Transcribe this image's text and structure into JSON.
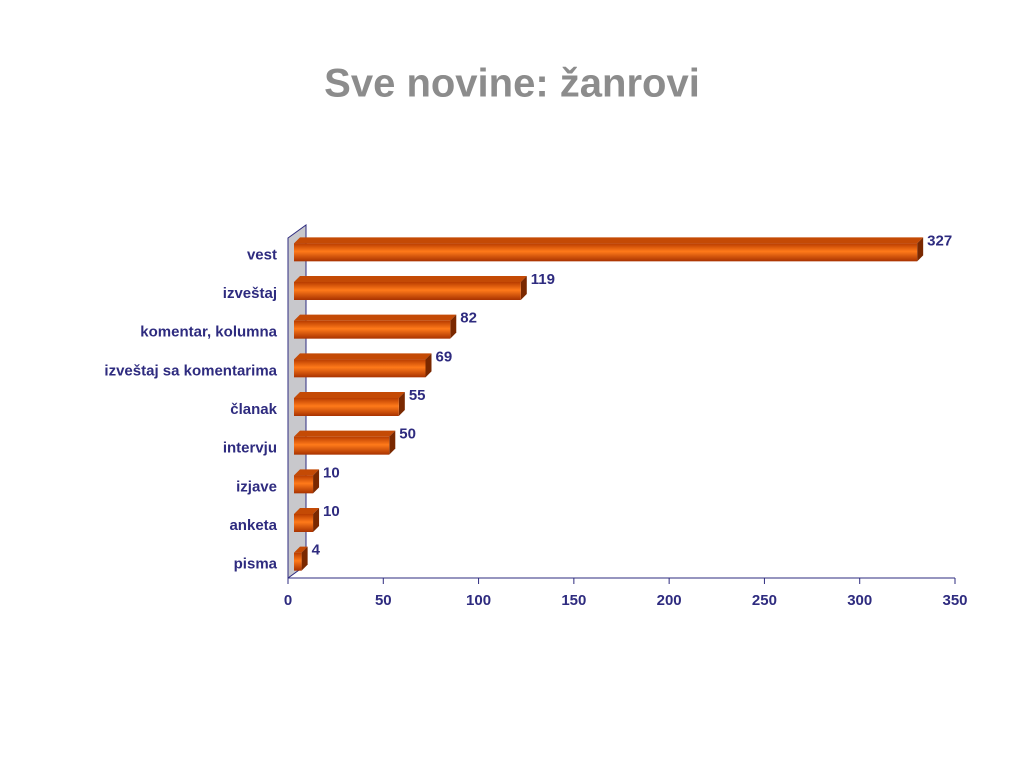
{
  "chart_data": {
    "type": "bar",
    "orientation": "horizontal",
    "title": "Sve novine: žanrovi",
    "categories": [
      "vest",
      "izveštaj",
      "komentar, kolumna",
      "izveštaj sa komentarima",
      "članak",
      "intervju",
      "izjave",
      "anketa",
      "pisma"
    ],
    "values": [
      327,
      119,
      82,
      69,
      55,
      50,
      10,
      10,
      4
    ],
    "color": "#e35b0c",
    "xlim": [
      0,
      350
    ],
    "xticks": [
      0,
      50,
      100,
      150,
      200,
      250,
      300,
      350
    ]
  }
}
